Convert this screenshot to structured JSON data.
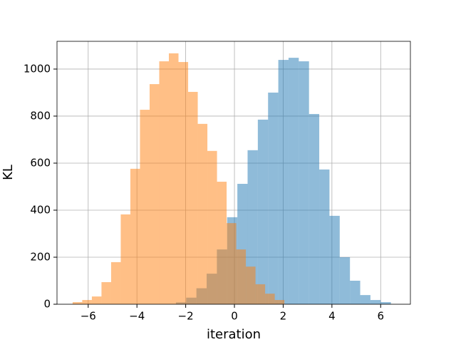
{
  "chart_data": {
    "type": "histogram",
    "xlabel": "iteration",
    "ylabel": "KL",
    "series": [
      {
        "color": "#1f77b480",
        "bins": [
          -2.4,
          -1.98,
          -1.56,
          -1.14,
          -0.72,
          -0.3,
          0.12,
          0.54,
          0.96,
          1.38,
          1.8,
          2.22,
          2.64,
          3.06,
          3.48,
          3.9,
          4.32,
          4.74,
          5.16,
          5.58,
          6.0,
          6.42
        ],
        "values": [
          8,
          28,
          68,
          130,
          233,
          370,
          512,
          655,
          785,
          900,
          1039,
          1048,
          1033,
          809,
          573,
          376,
          200,
          100,
          39,
          18,
          9
        ]
      },
      {
        "color": "#ff7f0e80",
        "bins": [
          -6.64,
          -6.245,
          -5.85,
          -5.455,
          -5.06,
          -4.665,
          -4.27,
          -3.875,
          -3.48,
          -3.085,
          -2.69,
          -2.295,
          -1.9,
          -1.505,
          -1.11,
          -0.715,
          -0.32,
          0.075,
          0.47,
          0.865,
          1.26,
          1.655,
          2.05
        ],
        "values": [
          9,
          18,
          33,
          94,
          179,
          382,
          576,
          827,
          936,
          1033,
          1067,
          1030,
          903,
          767,
          652,
          521,
          345,
          233,
          160,
          85,
          45,
          18
        ]
      }
    ],
    "xlim": [
      -7.28,
      7.22
    ],
    "ylim": [
      0,
      1118
    ],
    "xticks": [
      {
        "value": -6,
        "label": "−6"
      },
      {
        "value": -4,
        "label": "−4"
      },
      {
        "value": -2,
        "label": "−2"
      },
      0,
      2,
      4,
      6
    ],
    "yticks": [
      0,
      200,
      400,
      600,
      800,
      1000
    ],
    "grid": true
  }
}
